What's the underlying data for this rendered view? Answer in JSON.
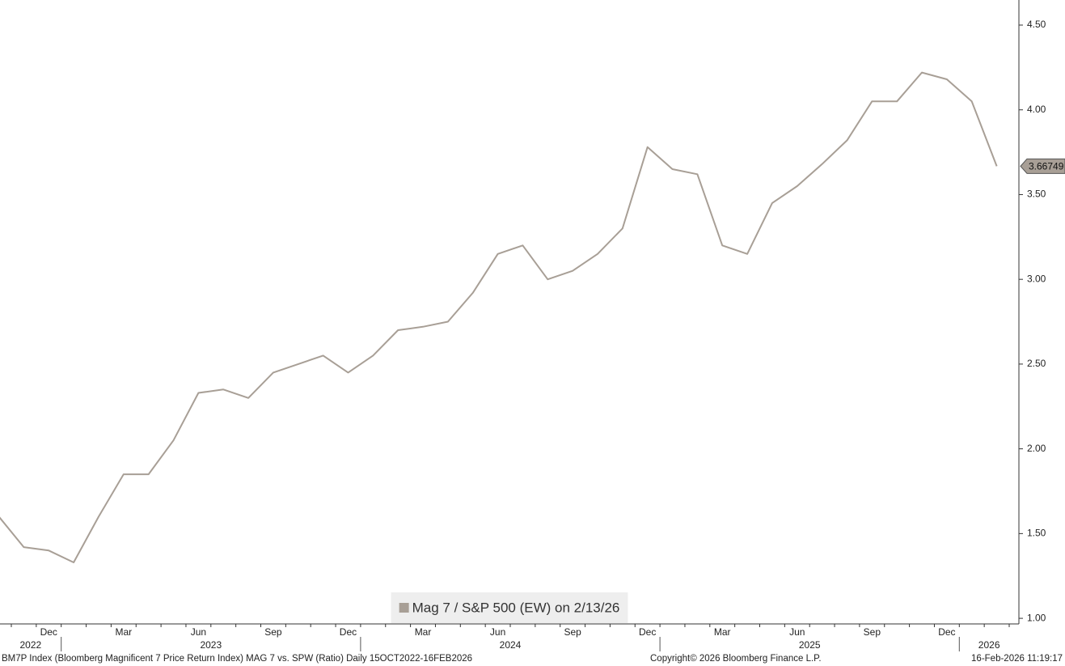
{
  "chart_data": {
    "type": "line",
    "x": [
      "2022-10",
      "2022-11",
      "2022-12",
      "2023-01",
      "2023-02",
      "2023-03",
      "2023-04",
      "2023-05",
      "2023-06",
      "2023-07",
      "2023-08",
      "2023-09",
      "2023-10",
      "2023-11",
      "2023-12",
      "2024-01",
      "2024-02",
      "2024-03",
      "2024-04",
      "2024-05",
      "2024-06",
      "2024-07",
      "2024-08",
      "2024-09",
      "2024-10",
      "2024-11",
      "2024-12",
      "2025-01",
      "2025-02",
      "2025-03",
      "2025-04",
      "2025-05",
      "2025-06",
      "2025-07",
      "2025-08",
      "2025-09",
      "2025-10",
      "2025-11",
      "2025-12",
      "2026-01",
      "2026-02"
    ],
    "series": [
      {
        "name": "Mag 7 / S&P 500 (EW) on 2/13/26",
        "color": "#a89f96",
        "values": [
          1.6,
          1.42,
          1.4,
          1.33,
          1.6,
          1.85,
          1.85,
          2.05,
          2.33,
          2.35,
          2.3,
          2.45,
          2.5,
          2.55,
          2.45,
          2.55,
          2.7,
          2.72,
          2.75,
          2.92,
          3.15,
          3.2,
          3.0,
          3.05,
          3.15,
          3.3,
          3.78,
          3.65,
          3.62,
          3.2,
          3.15,
          3.45,
          3.55,
          3.68,
          3.82,
          4.05,
          4.05,
          4.22,
          4.18,
          4.05,
          3.66749
        ],
        "value_labels": [
          null,
          null,
          null,
          null,
          null,
          null,
          null,
          null,
          null,
          null,
          null,
          null,
          null,
          null,
          null,
          null,
          null,
          null,
          null,
          null,
          null,
          null,
          null,
          null,
          null,
          null,
          null,
          null,
          null,
          null,
          null,
          null,
          null,
          null,
          null,
          null,
          null,
          null,
          null,
          null,
          "3.66749"
        ]
      }
    ],
    "ylim": [
      0.967,
      4.648
    ],
    "yticks": [
      {
        "value": 1,
        "label": "1.00"
      },
      {
        "value": 1.5,
        "label": "1.50"
      },
      {
        "value": 2,
        "label": "2.00"
      },
      {
        "value": 2.5,
        "label": "2.50"
      },
      {
        "value": 3,
        "label": "3.00"
      },
      {
        "value": 3.5,
        "label": "3.50"
      },
      {
        "value": 4,
        "label": "4.00"
      },
      {
        "value": 4.5,
        "label": "4.50"
      }
    ],
    "xticks": [
      {
        "value": "2022-12",
        "label": "Dec"
      },
      {
        "value": "2023-03",
        "label": "Mar"
      },
      {
        "value": "2023-06",
        "label": "Jun"
      },
      {
        "value": "2023-09",
        "label": "Sep"
      },
      {
        "value": "2023-12",
        "label": "Dec"
      },
      {
        "value": "2024-03",
        "label": "Mar"
      },
      {
        "value": "2024-06",
        "label": "Jun"
      },
      {
        "value": "2024-09",
        "label": "Sep"
      },
      {
        "value": "2024-12",
        "label": "Dec"
      },
      {
        "value": "2025-03",
        "label": "Mar"
      },
      {
        "value": "2025-06",
        "label": "Jun"
      },
      {
        "value": "2025-09",
        "label": "Sep"
      },
      {
        "value": "2025-12",
        "label": "Dec"
      }
    ],
    "years": [
      "2022",
      "2023",
      "2024",
      "2025",
      "2026"
    ],
    "footer": {
      "description": "BM7P Index (Bloomberg Magnificent 7 Price Return Index) MAG 7 vs. SPW (Ratio) Daily 15OCT2022-16FEB2026",
      "copyright": "Copyright© 2026 Bloomberg Finance L.P.",
      "timestamp": "16-Feb-2026 11:19:17"
    }
  }
}
